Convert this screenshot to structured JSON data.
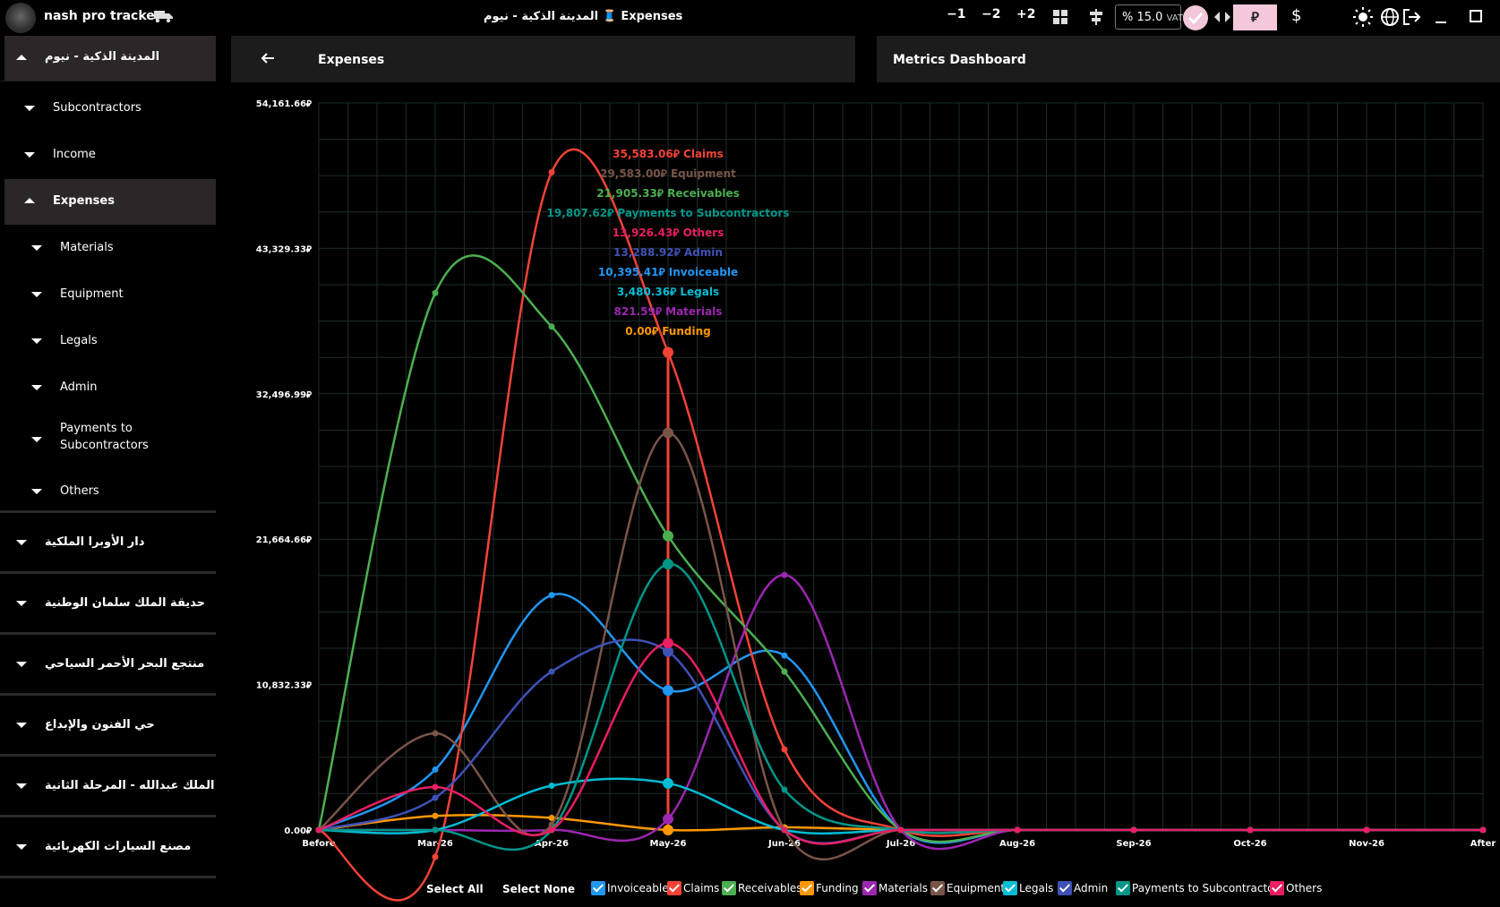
{
  "titlebar": {
    "app_name": "nash pro tracker",
    "window_title": "المدينة الذكية - نيوم 🧵 Expenses",
    "btn_minus1": "−1",
    "btn_minus2": "−2",
    "btn_plus2": "+2",
    "vat_label": "VAT",
    "vat_value": "% 15.0",
    "currency_riyal": "⃁",
    "currency_dollar": "$",
    "icons": [
      "truck-icon",
      "grid-icon",
      "align-icon",
      "check-icon",
      "arrows-icon",
      "sun-icon",
      "globe-icon",
      "logout-icon",
      "minimize-icon",
      "maximize-icon"
    ]
  },
  "sidebar": {
    "project_title": "المدينة الذكية - نيوم",
    "sections": [
      {
        "label": "Subcontractors"
      },
      {
        "label": "Income"
      },
      {
        "label": "Expenses"
      }
    ],
    "expense_items": [
      {
        "label": "Materials"
      },
      {
        "label": "Equipment"
      },
      {
        "label": "Legals"
      },
      {
        "label": "Admin"
      },
      {
        "label": "Payments to"
      },
      {
        "label": "Subcontractors"
      },
      {
        "label": "Others"
      }
    ],
    "projects": [
      {
        "label": "دار الأوبرا الملكية"
      },
      {
        "label": "حديقة الملك سلمان الوطنية"
      },
      {
        "label": "منتجع البحر الأحمر السياحي"
      },
      {
        "label": "حي الفنون والإبداع"
      },
      {
        "label": "ميناء الملك عبدالله - المرحلة الثانية"
      },
      {
        "label": "مصنع السيارات الكهربائية"
      }
    ]
  },
  "panels": {
    "expenses_title": "Expenses",
    "metrics_title": "Metrics Dashboard"
  },
  "legend_controls": {
    "select_all": "Select All",
    "select_none": "Select None"
  },
  "tooltip": {
    "month": "May-26",
    "entries": [
      {
        "value": "35,583.06⃁",
        "label": "Claims",
        "color": "#f44336"
      },
      {
        "value": "29,583.00⃁",
        "label": "Equipment",
        "color": "#795548"
      },
      {
        "value": "21,905.33⃁",
        "label": "Receivables",
        "color": "#4caf50"
      },
      {
        "value": "19,807.62⃁",
        "label": "Payments to Subcontractors",
        "color": "#009688"
      },
      {
        "value": "13,926.43⃁",
        "label": "Others",
        "color": "#e91e63"
      },
      {
        "value": "13,288.92⃁",
        "label": "Admin",
        "color": "#3f51b5"
      },
      {
        "value": "10,395.41⃁",
        "label": "Invoiceable",
        "color": "#2196f3"
      },
      {
        "value": "3,480.36⃁",
        "label": "Legals",
        "color": "#00bcd4"
      },
      {
        "value": "821.59⃁",
        "label": "Materials",
        "color": "#9c27b0"
      },
      {
        "value": "0.00⃁",
        "label": "Funding",
        "color": "#ff9800"
      }
    ]
  },
  "chart_data": {
    "type": "line",
    "title": "",
    "xlabel": "",
    "ylabel": "",
    "categories": [
      "Before",
      "Mar-26",
      "Apr-26",
      "May-26",
      "Jun-26",
      "Jul-26",
      "Aug-26",
      "Sep-26",
      "Oct-26",
      "Nov-26",
      "After"
    ],
    "y_ticks": [
      "0.00⃁",
      "10,832.33⃁",
      "21,664.66⃁",
      "32,496.99⃁",
      "43,329.33⃁",
      "54,161.66⃁"
    ],
    "ylim": [
      0,
      54161.66
    ],
    "grid": true,
    "curve": "smooth",
    "series": [
      {
        "name": "Invoiceable",
        "color": "#2196f3",
        "values": [
          0,
          4500,
          17500,
          10395.41,
          13000,
          0,
          0,
          0,
          0,
          0,
          0
        ]
      },
      {
        "name": "Claims",
        "color": "#f44336",
        "values": [
          0,
          -2000,
          49000,
          35583.06,
          6000,
          0,
          0,
          0,
          0,
          0,
          0
        ]
      },
      {
        "name": "Receivables",
        "color": "#4caf50",
        "values": [
          0,
          40000,
          37500,
          21905.33,
          11800,
          0,
          0,
          0,
          0,
          0,
          0
        ]
      },
      {
        "name": "Funding",
        "color": "#ff9800",
        "values": [
          0,
          1050,
          900,
          0,
          200,
          0,
          0,
          0,
          0,
          0,
          0
        ]
      },
      {
        "name": "Materials",
        "color": "#9c27b0",
        "values": [
          0,
          0,
          0,
          821.59,
          19000,
          0,
          0,
          0,
          0,
          0,
          0
        ]
      },
      {
        "name": "Equipment",
        "color": "#795548",
        "values": [
          0,
          7200,
          400,
          29583.0,
          0,
          0,
          0,
          0,
          0,
          0,
          0
        ]
      },
      {
        "name": "Legals",
        "color": "#00bcd4",
        "values": [
          0,
          0,
          3300,
          3480.36,
          0,
          0,
          0,
          0,
          0,
          0,
          0
        ]
      },
      {
        "name": "Admin",
        "color": "#3f51b5",
        "values": [
          0,
          2400,
          11800,
          13288.92,
          0,
          0,
          0,
          0,
          0,
          0,
          0
        ]
      },
      {
        "name": "Payments to Subcontractors",
        "color": "#009688",
        "values": [
          0,
          0,
          0,
          19807.62,
          3000,
          0,
          0,
          0,
          0,
          0,
          0
        ]
      },
      {
        "name": "Others",
        "color": "#e91e63",
        "values": [
          0,
          3200,
          0,
          13926.43,
          0,
          0,
          0,
          0,
          0,
          0,
          0
        ]
      }
    ]
  }
}
